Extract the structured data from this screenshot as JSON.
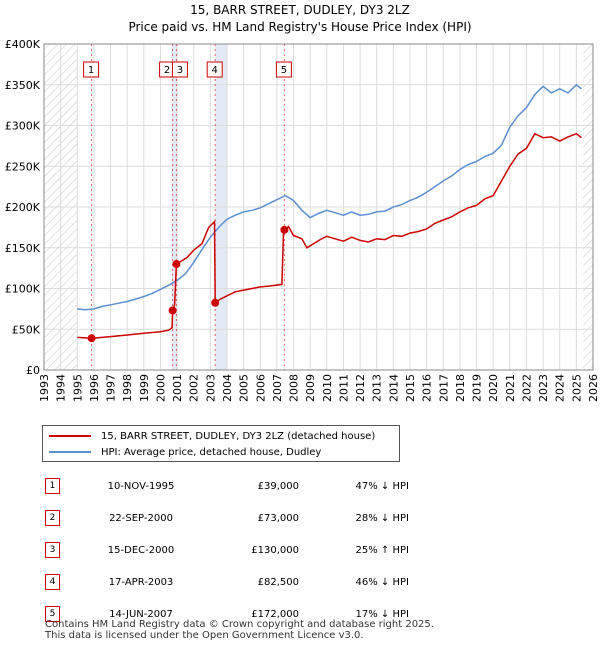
{
  "chart_data": {
    "type": "line",
    "title": "15, BARR STREET, DUDLEY, DY3 2LZ",
    "subtitle": "Price paid vs. HM Land Registry's House Price Index (HPI)",
    "xlim": [
      1993,
      2026
    ],
    "ylim": [
      0,
      400000
    ],
    "x_ticks": [
      "1993",
      "1994",
      "1995",
      "1996",
      "1997",
      "1998",
      "1999",
      "2000",
      "2001",
      "2002",
      "2003",
      "2004",
      "2005",
      "2006",
      "2007",
      "2008",
      "2009",
      "2010",
      "2011",
      "2012",
      "2013",
      "2014",
      "2015",
      "2016",
      "2017",
      "2018",
      "2019",
      "2020",
      "2021",
      "2022",
      "2023",
      "2024",
      "2025",
      "2026"
    ],
    "y_ticks": [
      {
        "value": 0,
        "label": "£0"
      },
      {
        "value": 50000,
        "label": "£50K"
      },
      {
        "value": 100000,
        "label": "£100K"
      },
      {
        "value": 150000,
        "label": "£150K"
      },
      {
        "value": 200000,
        "label": "£200K"
      },
      {
        "value": 250000,
        "label": "£250K"
      },
      {
        "value": 300000,
        "label": "£300K"
      },
      {
        "value": 350000,
        "label": "£350K"
      },
      {
        "value": 400000,
        "label": "£400K"
      }
    ],
    "hatched_ranges": [
      [
        1993,
        1995.0
      ],
      [
        2025.4,
        2026
      ]
    ],
    "shaded_ranges": [
      [
        2000.7,
        2001.0
      ],
      [
        2003.3,
        2004.0
      ]
    ],
    "colors": {
      "property": "#cc0000",
      "hpi": "#5b8fd0",
      "marker_line": "#cc0000"
    },
    "series": [
      {
        "name": "15, BARR STREET, DUDLEY, DY3 2LZ (detached house)",
        "x": [
          1995.0,
          1995.86,
          1996.5,
          1997,
          1998,
          1999,
          2000,
          2000.5,
          2000.7,
          2000.73,
          2000.85,
          2000.96,
          2001.2,
          2001.6,
          2002,
          2002.5,
          2002.9,
          2003.25,
          2003.29,
          2003.6,
          2004,
          2004.5,
          2005,
          2005.5,
          2006,
          2006.5,
          2007.3,
          2007.4,
          2007.45,
          2007.7,
          2008,
          2008.5,
          2008.8,
          2009.2,
          2009.6,
          2010,
          2010.5,
          2011,
          2011.5,
          2012,
          2012.5,
          2013,
          2013.5,
          2014,
          2014.5,
          2015,
          2015.5,
          2016,
          2016.5,
          2017,
          2017.5,
          2018,
          2018.5,
          2019,
          2019.5,
          2020,
          2020.5,
          2021,
          2021.5,
          2022,
          2022.5,
          2023,
          2023.5,
          2024,
          2024.5,
          2025,
          2025.3
        ],
        "values": [
          40000,
          39000,
          40000,
          41000,
          43000,
          45000,
          47000,
          49000,
          52000,
          73000,
          80000,
          130000,
          133000,
          138000,
          147000,
          155000,
          175000,
          182000,
          82500,
          87000,
          91000,
          96000,
          98000,
          100000,
          102000,
          103000,
          105000,
          172000,
          172000,
          176000,
          165000,
          161000,
          150000,
          155000,
          160000,
          164000,
          161000,
          158000,
          163000,
          159000,
          157000,
          161000,
          160000,
          165000,
          164000,
          168000,
          170000,
          173000,
          180000,
          184000,
          188000,
          194000,
          199000,
          202000,
          210000,
          214000,
          232000,
          250000,
          265000,
          272000,
          290000,
          285000,
          286000,
          281000,
          286000,
          290000,
          285000
        ]
      },
      {
        "name": "HPI: Average price, detached house, Dudley",
        "x": [
          1995.0,
          1995.5,
          1996,
          1996.5,
          1997,
          1997.5,
          1998,
          1998.5,
          1999,
          1999.5,
          2000,
          2000.5,
          2001,
          2001.5,
          2002,
          2002.5,
          2003,
          2003.5,
          2004,
          2004.5,
          2005,
          2005.5,
          2006,
          2006.5,
          2007,
          2007.5,
          2008,
          2008.5,
          2009,
          2009.5,
          2010,
          2010.5,
          2011,
          2011.5,
          2012,
          2012.5,
          2013,
          2013.5,
          2014,
          2014.5,
          2015,
          2015.5,
          2016,
          2016.5,
          2017,
          2017.5,
          2018,
          2018.5,
          2019,
          2019.5,
          2020,
          2020.5,
          2021,
          2021.5,
          2022,
          2022.5,
          2023,
          2023.5,
          2024,
          2024.5,
          2025,
          2025.3
        ],
        "values": [
          75000,
          74000,
          75000,
          78000,
          80000,
          82000,
          84000,
          87000,
          90000,
          94000,
          99000,
          104000,
          110000,
          118000,
          132000,
          148000,
          163000,
          175000,
          185000,
          190000,
          194000,
          196000,
          199000,
          204000,
          209000,
          214000,
          208000,
          196000,
          187000,
          192000,
          196000,
          193000,
          190000,
          194000,
          190000,
          191000,
          194000,
          195000,
          200000,
          203000,
          208000,
          212000,
          218000,
          225000,
          232000,
          238000,
          246000,
          252000,
          256000,
          262000,
          266000,
          276000,
          298000,
          312000,
          322000,
          338000,
          348000,
          340000,
          345000,
          340000,
          350000,
          345000
        ]
      }
    ],
    "sales": [
      {
        "num": "1",
        "date": "10-NOV-1995",
        "x": 1995.86,
        "price": 39000,
        "price_label": "£39,000",
        "hpi_note": "47% ↓ HPI"
      },
      {
        "num": "2",
        "date": "22-SEP-2000",
        "x": 2000.73,
        "price": 73000,
        "price_label": "£73,000",
        "hpi_note": "28% ↓ HPI"
      },
      {
        "num": "3",
        "date": "15-DEC-2000",
        "x": 2000.96,
        "price": 130000,
        "price_label": "£130,000",
        "hpi_note": "25% ↑ HPI"
      },
      {
        "num": "4",
        "date": "17-APR-2003",
        "x": 2003.29,
        "price": 82500,
        "price_label": "£82,500",
        "hpi_note": "46% ↓ HPI"
      },
      {
        "num": "5",
        "date": "14-JUN-2007",
        "x": 2007.45,
        "price": 172000,
        "price_label": "£172,000",
        "hpi_note": "17% ↓ HPI"
      }
    ]
  },
  "legend": {
    "property_label": "15, BARR STREET, DUDLEY, DY3 2LZ (detached house)",
    "hpi_label": "HPI: Average price, detached house, Dudley"
  },
  "footer": {
    "line1": "Contains HM Land Registry data © Crown copyright and database right 2025.",
    "line2": "This data is licensed under the Open Government Licence v3.0."
  }
}
